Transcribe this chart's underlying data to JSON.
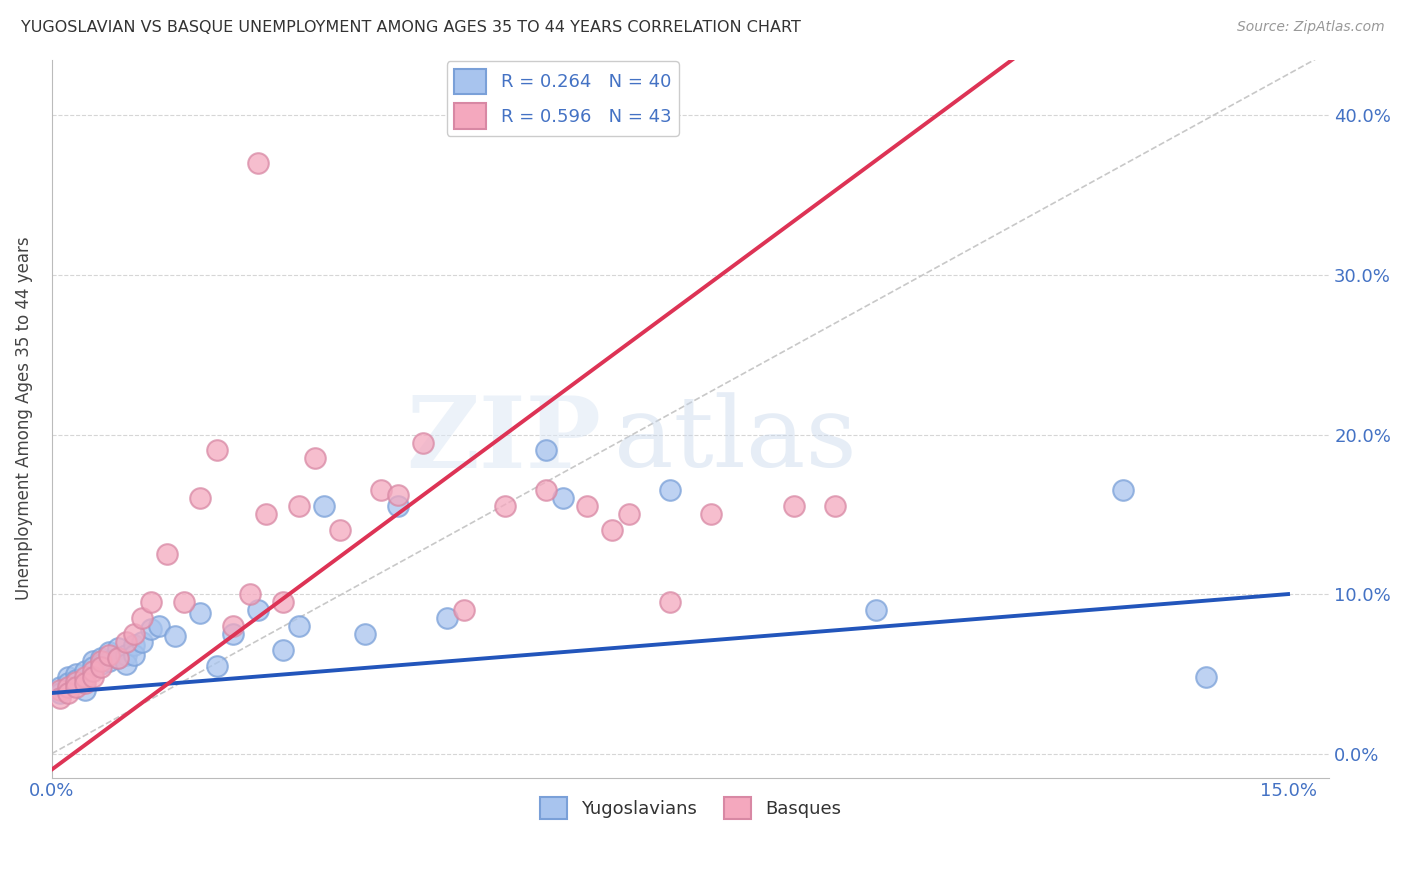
{
  "title": "YUGOSLAVIAN VS BASQUE UNEMPLOYMENT AMONG AGES 35 TO 44 YEARS CORRELATION CHART",
  "source": "Source: ZipAtlas.com",
  "ylabel": "Unemployment Among Ages 35 to 44 years",
  "xlim": [
    0.0,
    0.155
  ],
  "ylim": [
    -0.015,
    0.435
  ],
  "blue_color": "#a8c4ee",
  "pink_color": "#f4a8be",
  "blue_line_color": "#2255bb",
  "pink_line_color": "#dd3355",
  "diag_color": "#c8c8c8",
  "background_color": "#ffffff",
  "legend_label1": "Yugoslavians",
  "legend_label2": "Basques",
  "yug_x": [
    0.001,
    0.001,
    0.002,
    0.002,
    0.003,
    0.003,
    0.004,
    0.004,
    0.005,
    0.005,
    0.006,
    0.006,
    0.007,
    0.007,
    0.008,
    0.008,
    0.009,
    0.009,
    0.01,
    0.01,
    0.011,
    0.012,
    0.013,
    0.015,
    0.018,
    0.02,
    0.022,
    0.025,
    0.028,
    0.03,
    0.033,
    0.038,
    0.042,
    0.048,
    0.06,
    0.062,
    0.075,
    0.1,
    0.13,
    0.14
  ],
  "yug_y": [
    0.042,
    0.038,
    0.048,
    0.044,
    0.05,
    0.046,
    0.052,
    0.04,
    0.058,
    0.054,
    0.06,
    0.056,
    0.064,
    0.058,
    0.066,
    0.06,
    0.062,
    0.056,
    0.068,
    0.062,
    0.07,
    0.078,
    0.08,
    0.074,
    0.088,
    0.055,
    0.075,
    0.09,
    0.065,
    0.08,
    0.155,
    0.075,
    0.155,
    0.085,
    0.19,
    0.16,
    0.165,
    0.09,
    0.165,
    0.048
  ],
  "bas_x": [
    0.001,
    0.001,
    0.002,
    0.002,
    0.003,
    0.003,
    0.004,
    0.004,
    0.005,
    0.005,
    0.006,
    0.006,
    0.007,
    0.008,
    0.009,
    0.01,
    0.011,
    0.012,
    0.014,
    0.016,
    0.018,
    0.02,
    0.022,
    0.024,
    0.026,
    0.028,
    0.03,
    0.032,
    0.035,
    0.04,
    0.042,
    0.045,
    0.05,
    0.055,
    0.06,
    0.065,
    0.068,
    0.07,
    0.075,
    0.08,
    0.09,
    0.095,
    0.025
  ],
  "bas_y": [
    0.04,
    0.035,
    0.042,
    0.038,
    0.045,
    0.042,
    0.048,
    0.044,
    0.052,
    0.048,
    0.058,
    0.054,
    0.062,
    0.06,
    0.07,
    0.075,
    0.085,
    0.095,
    0.125,
    0.095,
    0.16,
    0.19,
    0.08,
    0.1,
    0.15,
    0.095,
    0.155,
    0.185,
    0.14,
    0.165,
    0.162,
    0.195,
    0.09,
    0.155,
    0.165,
    0.155,
    0.14,
    0.15,
    0.095,
    0.15,
    0.155,
    0.155,
    0.37
  ],
  "blue_line_x0": 0.0,
  "blue_line_y0": 0.038,
  "blue_line_x1": 0.15,
  "blue_line_y1": 0.1,
  "pink_line_x0": 0.0,
  "pink_line_y0": -0.01,
  "pink_line_x1": 0.055,
  "pink_line_y1": 0.2
}
